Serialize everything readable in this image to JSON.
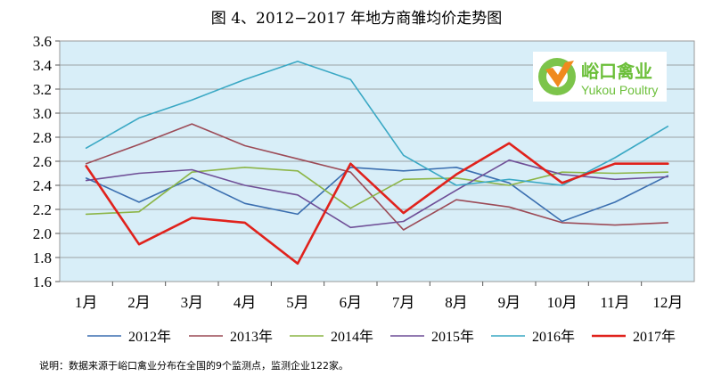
{
  "chart_data": {
    "type": "line",
    "title": "图 4、2012−2017 年地方商雏均价走势图",
    "categories": [
      "1月",
      "2月",
      "3月",
      "4月",
      "5月",
      "6月",
      "7月",
      "8月",
      "9月",
      "10月",
      "11月",
      "12月"
    ],
    "ylim": [
      1.6,
      3.6
    ],
    "yticks": [
      "1.6",
      "1.8",
      "2.0",
      "2.2",
      "2.4",
      "2.6",
      "2.8",
      "3.0",
      "3.2",
      "3.4",
      "3.6"
    ],
    "grid": true,
    "legend_position": "bottom",
    "series": [
      {
        "name": "2012年",
        "color": "#3b6fb0",
        "width": 1.6,
        "values": [
          2.46,
          2.26,
          2.46,
          2.25,
          2.16,
          2.55,
          2.52,
          2.55,
          2.42,
          2.1,
          2.26,
          2.48
        ]
      },
      {
        "name": "2013年",
        "color": "#9c4b57",
        "width": 1.6,
        "values": [
          2.58,
          2.74,
          2.91,
          2.73,
          2.62,
          2.51,
          2.03,
          2.28,
          2.22,
          2.09,
          2.07,
          2.09
        ]
      },
      {
        "name": "2014年",
        "color": "#8cb547",
        "width": 1.6,
        "values": [
          2.16,
          2.18,
          2.51,
          2.55,
          2.52,
          2.21,
          2.45,
          2.46,
          2.4,
          2.51,
          2.5,
          2.51
        ]
      },
      {
        "name": "2015年",
        "color": "#6f4f97",
        "width": 1.6,
        "values": [
          2.44,
          2.5,
          2.53,
          2.4,
          2.32,
          2.05,
          2.1,
          2.36,
          2.61,
          2.49,
          2.45,
          2.47
        ]
      },
      {
        "name": "2016年",
        "color": "#3aa8c4",
        "width": 1.6,
        "values": [
          2.71,
          2.96,
          3.11,
          3.28,
          3.43,
          3.28,
          2.65,
          2.4,
          2.45,
          2.4,
          2.63,
          2.89
        ]
      },
      {
        "name": "2017年",
        "color": "#e0221c",
        "width": 2.6,
        "values": [
          2.56,
          1.91,
          2.13,
          2.09,
          1.75,
          2.58,
          2.17,
          2.49,
          2.75,
          2.42,
          2.58,
          2.58
        ]
      }
    ]
  },
  "logo": {
    "cn": "峪口禽业",
    "en": "Yukou Poultry"
  },
  "note": "说明：数据来源于峪口禽业分布在全国的9个监测点，监测企业122家。"
}
